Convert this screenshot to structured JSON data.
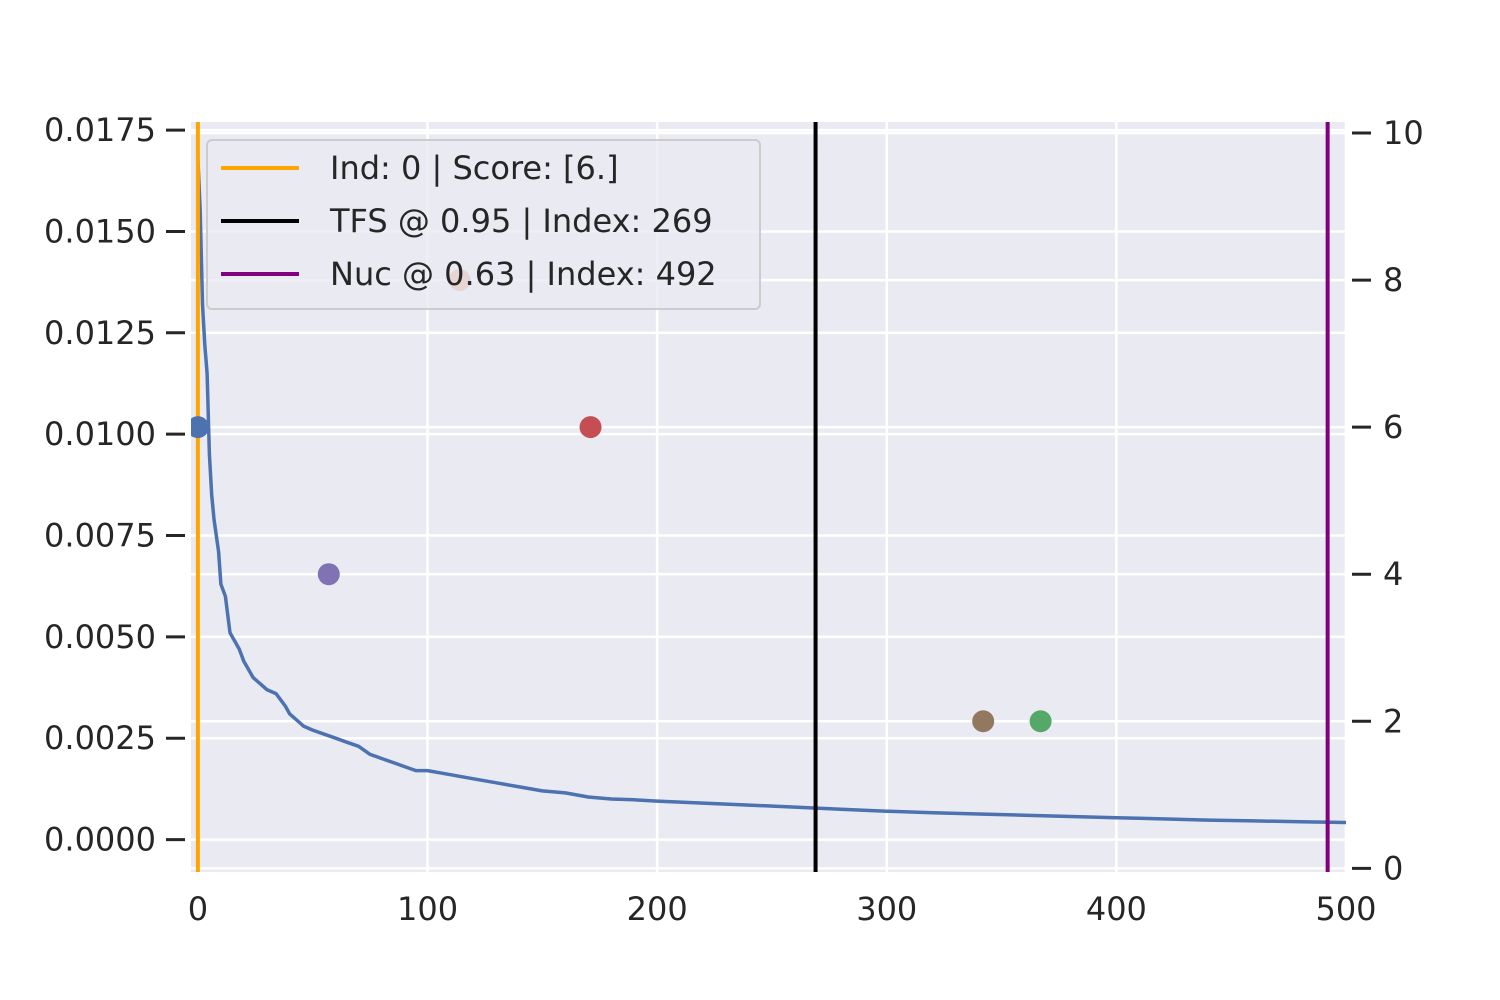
{
  "chart_data": {
    "type": "line",
    "title": "",
    "xlabel": "",
    "ylabel": "",
    "xlim": [
      -3,
      500
    ],
    "ylim": [
      -0.0008,
      0.0177
    ],
    "y2lim": [
      -0.05,
      10.15
    ],
    "grid": true,
    "background": "#eaeaf2",
    "legend_position": "top-left",
    "x_ticks": [
      0,
      100,
      200,
      300,
      400,
      500
    ],
    "x_tick_labels": [
      "0",
      "100",
      "200",
      "300",
      "400",
      "500"
    ],
    "y_ticks": [
      0,
      0.0025,
      0.005,
      0.0075,
      0.01,
      0.0125,
      0.015,
      0.0175
    ],
    "y_tick_labels": [
      "0.0000",
      "0.0025",
      "0.0050",
      "0.0075",
      "0.0100",
      "0.0125",
      "0.0150",
      "0.0175"
    ],
    "y2_ticks": [
      0,
      2,
      4,
      6,
      8,
      10
    ],
    "y2_tick_labels": [
      "0",
      "2",
      "4",
      "6",
      "8",
      "10"
    ],
    "series": [
      {
        "color": "#4c72b0",
        "axis": "left",
        "x": [
          0,
          1,
          2,
          3,
          4,
          5,
          6,
          7,
          8,
          9,
          10,
          12,
          14,
          16,
          18,
          20,
          22,
          24,
          26,
          28,
          30,
          34,
          38,
          40,
          42,
          44,
          46,
          50,
          55,
          60,
          65,
          70,
          75,
          80,
          85,
          90,
          95,
          100,
          110,
          120,
          130,
          140,
          150,
          160,
          170,
          180,
          190,
          200,
          220,
          240,
          260,
          280,
          300,
          320,
          340,
          360,
          380,
          400,
          420,
          440,
          460,
          480,
          500
        ],
        "values": [
          0.0168,
          0.0155,
          0.0132,
          0.0122,
          0.0115,
          0.0095,
          0.0085,
          0.0079,
          0.0075,
          0.0071,
          0.0063,
          0.006,
          0.0051,
          0.0049,
          0.0047,
          0.0044,
          0.0042,
          0.004,
          0.0039,
          0.0038,
          0.0037,
          0.0036,
          0.0033,
          0.0031,
          0.003,
          0.0029,
          0.0028,
          0.0027,
          0.0026,
          0.0025,
          0.0024,
          0.0023,
          0.0021,
          0.002,
          0.0019,
          0.0018,
          0.0017,
          0.0017,
          0.0016,
          0.0015,
          0.0014,
          0.0013,
          0.0012,
          0.00115,
          0.00105,
          0.001,
          0.00098,
          0.00095,
          0.0009,
          0.00085,
          0.0008,
          0.00075,
          0.0007,
          0.00066,
          0.00063,
          0.0006,
          0.00057,
          0.00054,
          0.00051,
          0.00048,
          0.00046,
          0.00044,
          0.00042
        ]
      }
    ],
    "vlines": [
      {
        "x": 0,
        "color": "#ffa500",
        "legend_label": "Ind: 0 | Score: [6.]"
      },
      {
        "x": 269,
        "color": "#000000",
        "legend_label": "TFS @ 0.95 | Index: 269"
      },
      {
        "x": 492,
        "color": "#800080",
        "legend_label": "Nuc @ 0.63 | Index: 492"
      }
    ],
    "points": [
      {
        "x": 0,
        "y": 6,
        "axis": "right",
        "color": "#4c72b0"
      },
      {
        "x": 114,
        "y": 8,
        "axis": "right",
        "color": "#dd8452"
      },
      {
        "x": 171,
        "y": 6,
        "axis": "right",
        "color": "#c44e52"
      },
      {
        "x": 57,
        "y": 4,
        "axis": "right",
        "color": "#8172b3"
      },
      {
        "x": 342,
        "y": 2,
        "axis": "right",
        "color": "#937860"
      },
      {
        "x": 367,
        "y": 2,
        "axis": "right",
        "color": "#55a868"
      }
    ]
  }
}
